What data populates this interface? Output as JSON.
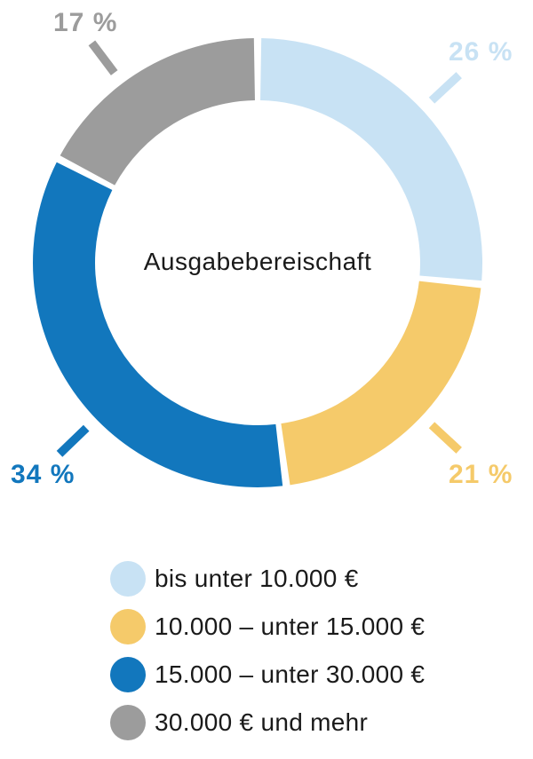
{
  "chart_data": {
    "type": "pie",
    "subtype": "donut",
    "center_label": "Ausgabebereischaft",
    "unit": "%",
    "legend_position": "bottom",
    "background_color": "#FFFFFF",
    "text_color": "#1A1A1A",
    "segments": [
      {
        "label": "bis unter 10.000 €",
        "value": 26,
        "display": "26 %",
        "color": "#C8E2F4"
      },
      {
        "label": "10.000 – unter 15.000 €",
        "value": 21,
        "display": "21 %",
        "color": "#F5CA6A"
      },
      {
        "label": "15.000 – unter 30.000 €",
        "value": 34,
        "display": "34 %",
        "color": "#1277BD"
      },
      {
        "label": "30.000 € und mehr",
        "value": 17,
        "display": "17 %",
        "color": "#9C9C9C"
      }
    ]
  }
}
